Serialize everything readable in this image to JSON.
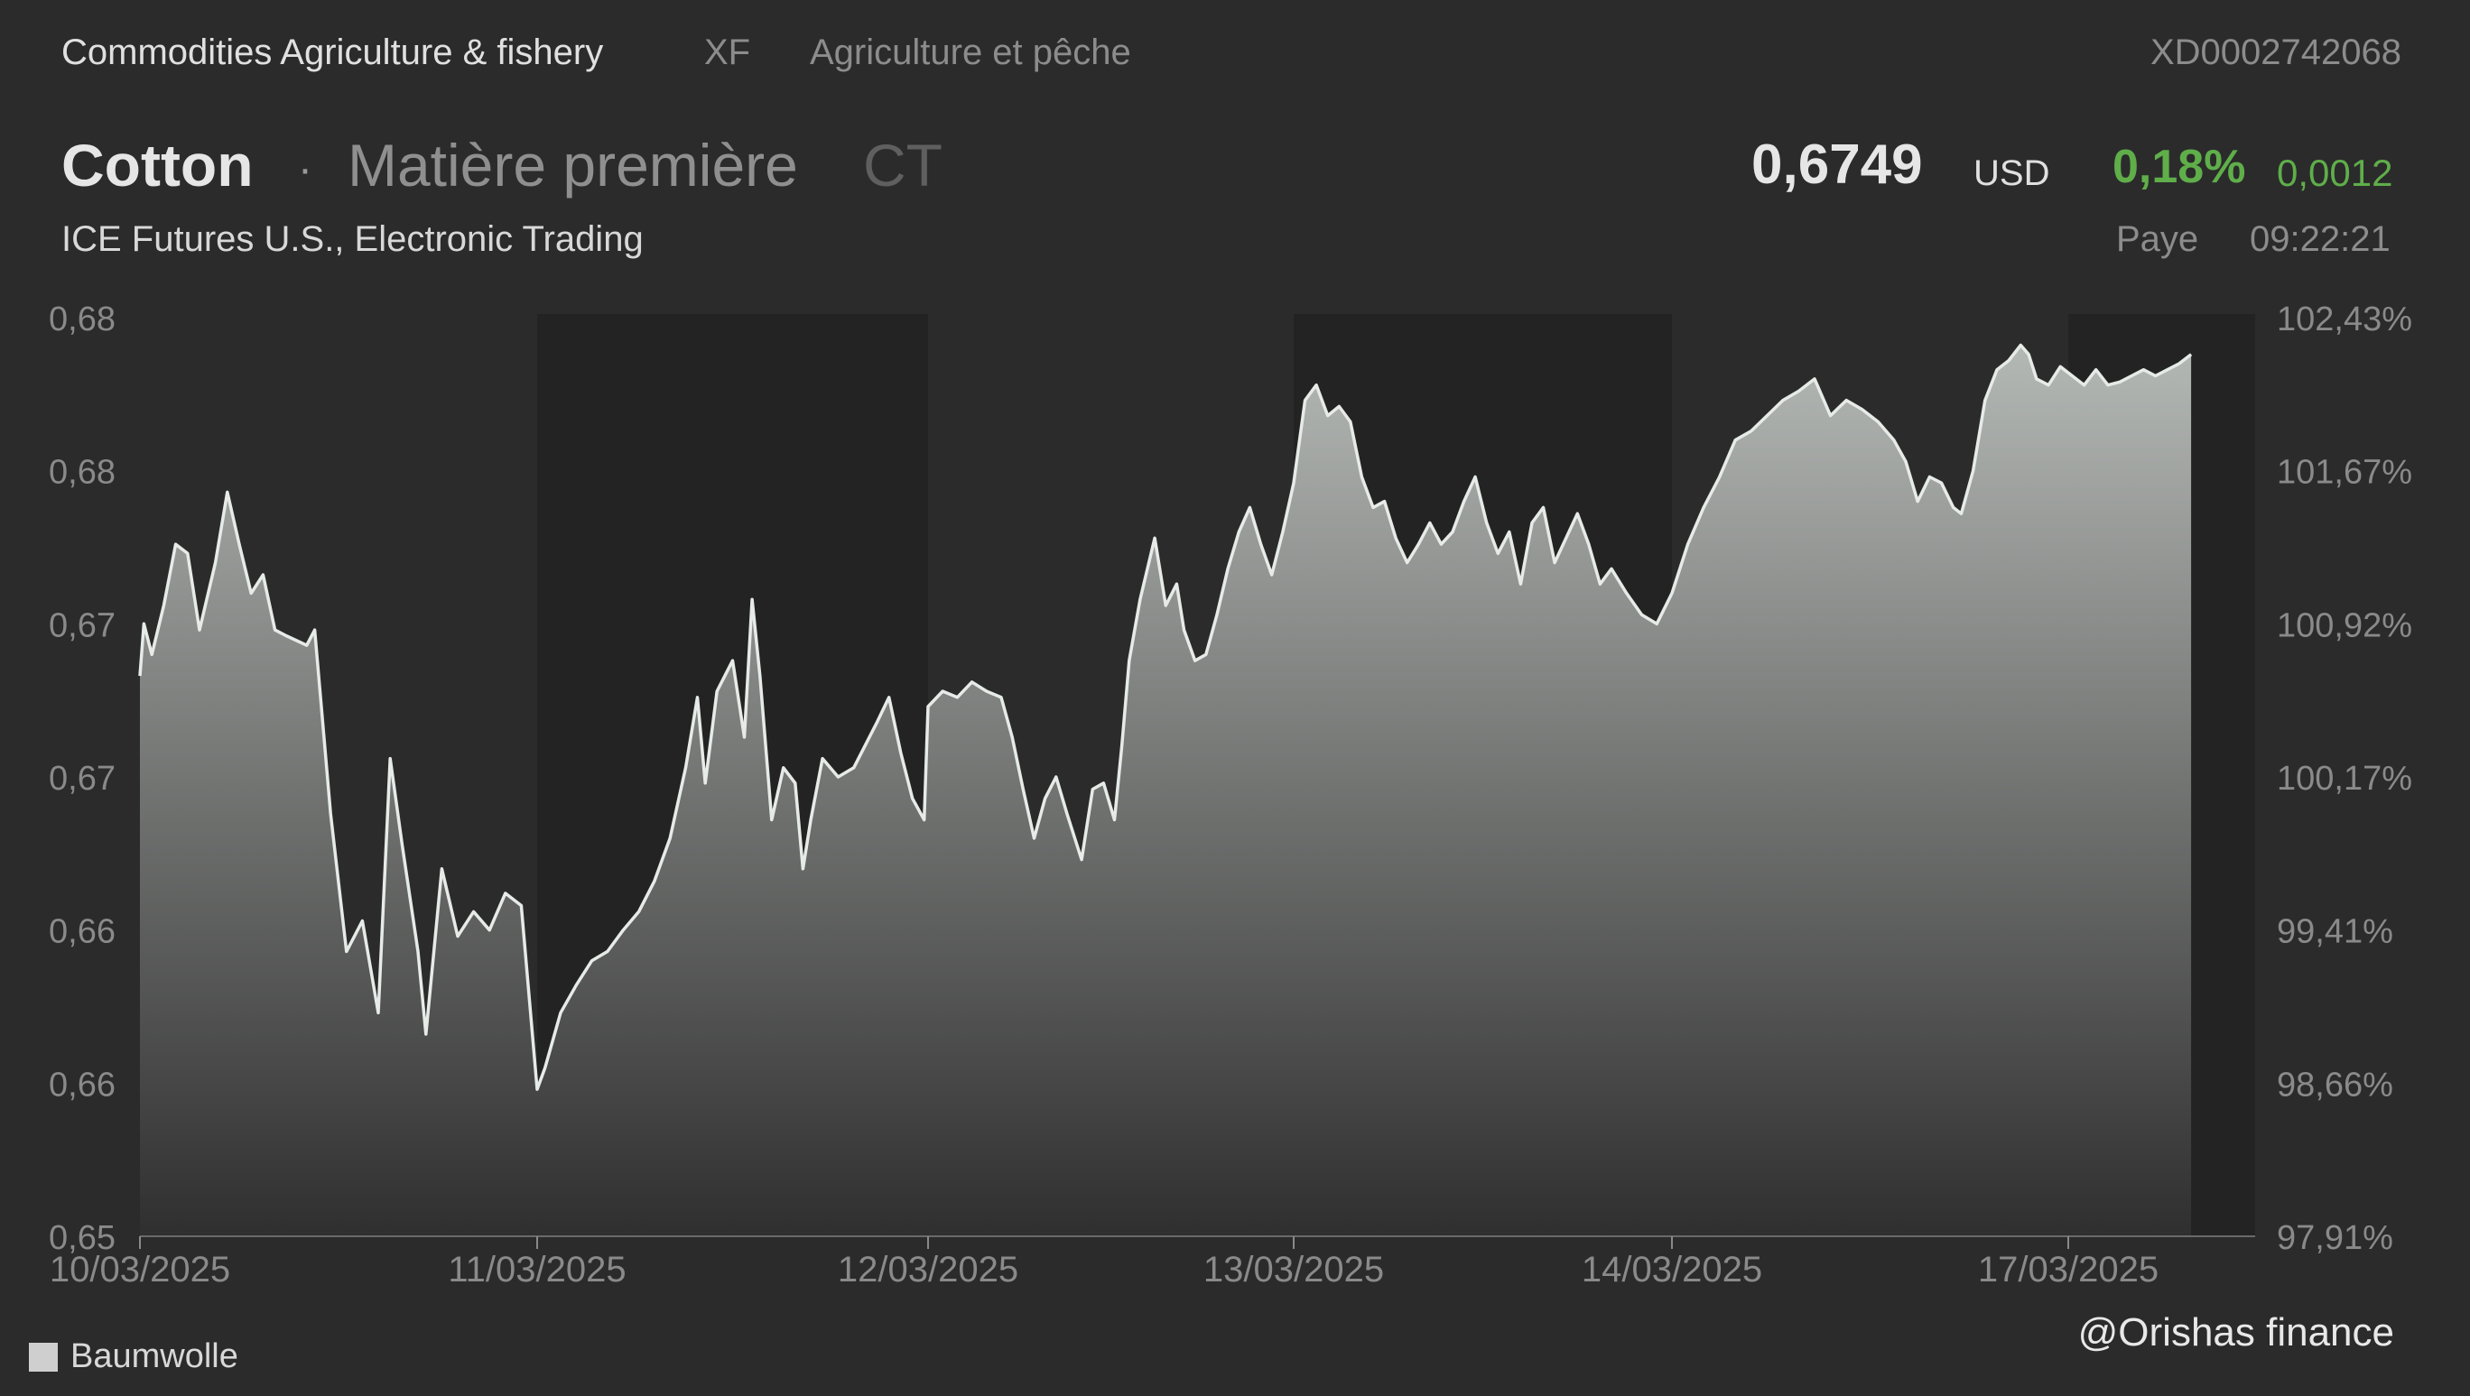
{
  "header": {
    "category": "Commodities Agriculture & fishery",
    "code": "XF",
    "category_fr": "Agriculture et pêche",
    "isin": "XD0002742068",
    "name": "Cotton",
    "separator": "·",
    "type": "Matière première",
    "ticker": "CT",
    "price": "0,6749",
    "currency": "USD",
    "change_pct": "0,18%",
    "change_abs": "0,0012",
    "exchange": "ICE Futures U.S., Electronic Trading",
    "country": "Paye",
    "time": "09:22:21"
  },
  "colors": {
    "background": "#2b2b2b",
    "band_dark": "#232323",
    "line": "#e6ebe8",
    "fill_top": "#b4b8b5",
    "fill_bottom": "#2f2f2f",
    "positive": "#5fae4a"
  },
  "chart_data": {
    "type": "area",
    "title": "",
    "xlabel": "",
    "ylabel": "",
    "ylim": [
      0.6512,
      0.6812
    ],
    "y_left_ticks": [
      "0,68",
      "0,68",
      "0,67",
      "0,67",
      "0,66",
      "0,66",
      "0,65"
    ],
    "y_right_ticks": [
      "102,43%",
      "101,67%",
      "100,92%",
      "100,17%",
      "99,41%",
      "98,66%",
      "97,91%"
    ],
    "x_ticks": [
      "10/03/2025",
      "11/03/2025",
      "12/03/2025",
      "13/03/2025",
      "14/03/2025",
      "17/03/2025"
    ],
    "series": [
      {
        "name": "Baumwolle",
        "points": [
          [
            0.0,
            0.6695
          ],
          [
            0.01,
            0.6712
          ],
          [
            0.03,
            0.6702
          ],
          [
            0.06,
            0.6718
          ],
          [
            0.09,
            0.6738
          ],
          [
            0.12,
            0.6735
          ],
          [
            0.15,
            0.671
          ],
          [
            0.19,
            0.6732
          ],
          [
            0.22,
            0.6755
          ],
          [
            0.25,
            0.6738
          ],
          [
            0.28,
            0.6722
          ],
          [
            0.31,
            0.6728
          ],
          [
            0.34,
            0.671
          ],
          [
            0.37,
            0.6708
          ],
          [
            0.42,
            0.6705
          ],
          [
            0.44,
            0.671
          ],
          [
            0.48,
            0.665
          ],
          [
            0.52,
            0.6605
          ],
          [
            0.56,
            0.6615
          ],
          [
            0.6,
            0.6585
          ],
          [
            0.63,
            0.6668
          ],
          [
            0.66,
            0.664
          ],
          [
            0.7,
            0.6605
          ],
          [
            0.72,
            0.6578
          ],
          [
            0.76,
            0.6632
          ],
          [
            0.8,
            0.661
          ],
          [
            0.84,
            0.6618
          ],
          [
            0.88,
            0.6612
          ],
          [
            0.92,
            0.6624
          ],
          [
            0.96,
            0.662
          ],
          [
            1.0,
            0.656
          ],
          [
            1.02,
            0.6567
          ],
          [
            1.06,
            0.6585
          ],
          [
            1.1,
            0.6594
          ],
          [
            1.14,
            0.6602
          ],
          [
            1.18,
            0.6605
          ],
          [
            1.22,
            0.6612
          ],
          [
            1.26,
            0.6618
          ],
          [
            1.3,
            0.6628
          ],
          [
            1.34,
            0.6642
          ],
          [
            1.38,
            0.6665
          ],
          [
            1.41,
            0.6688
          ],
          [
            1.43,
            0.666
          ],
          [
            1.46,
            0.669
          ],
          [
            1.5,
            0.67
          ],
          [
            1.53,
            0.6675
          ],
          [
            1.55,
            0.672
          ],
          [
            1.57,
            0.6695
          ],
          [
            1.6,
            0.6648
          ],
          [
            1.63,
            0.6665
          ],
          [
            1.66,
            0.666
          ],
          [
            1.68,
            0.6632
          ],
          [
            1.7,
            0.6648
          ],
          [
            1.73,
            0.6668
          ],
          [
            1.77,
            0.6662
          ],
          [
            1.81,
            0.6665
          ],
          [
            1.85,
            0.6675
          ],
          [
            1.87,
            0.668
          ],
          [
            1.9,
            0.6688
          ],
          [
            1.93,
            0.667
          ],
          [
            1.96,
            0.6655
          ],
          [
            1.99,
            0.6648
          ],
          [
            2.0,
            0.6685
          ],
          [
            2.04,
            0.669
          ],
          [
            2.08,
            0.6688
          ],
          [
            2.12,
            0.6693
          ],
          [
            2.16,
            0.669
          ],
          [
            2.2,
            0.6688
          ],
          [
            2.23,
            0.6675
          ],
          [
            2.26,
            0.6658
          ],
          [
            2.29,
            0.6642
          ],
          [
            2.32,
            0.6655
          ],
          [
            2.35,
            0.6662
          ],
          [
            2.38,
            0.665
          ],
          [
            2.42,
            0.6635
          ],
          [
            2.45,
            0.6658
          ],
          [
            2.48,
            0.666
          ],
          [
            2.51,
            0.6648
          ],
          [
            2.53,
            0.6672
          ],
          [
            2.55,
            0.67
          ],
          [
            2.58,
            0.672
          ],
          [
            2.62,
            0.674
          ],
          [
            2.65,
            0.6718
          ],
          [
            2.68,
            0.6725
          ],
          [
            2.7,
            0.671
          ],
          [
            2.73,
            0.67
          ],
          [
            2.76,
            0.6702
          ],
          [
            2.79,
            0.6715
          ],
          [
            2.82,
            0.673
          ],
          [
            2.85,
            0.6742
          ],
          [
            2.88,
            0.675
          ],
          [
            2.91,
            0.6738
          ],
          [
            2.94,
            0.6728
          ],
          [
            2.97,
            0.6742
          ],
          [
            3.0,
            0.6758
          ],
          [
            3.03,
            0.6785
          ],
          [
            3.06,
            0.679
          ],
          [
            3.09,
            0.678
          ],
          [
            3.12,
            0.6783
          ],
          [
            3.15,
            0.6778
          ],
          [
            3.18,
            0.676
          ],
          [
            3.21,
            0.675
          ],
          [
            3.24,
            0.6752
          ],
          [
            3.27,
            0.674
          ],
          [
            3.3,
            0.6732
          ],
          [
            3.33,
            0.6738
          ],
          [
            3.36,
            0.6745
          ],
          [
            3.39,
            0.6738
          ],
          [
            3.42,
            0.6742
          ],
          [
            3.45,
            0.6752
          ],
          [
            3.48,
            0.676
          ],
          [
            3.51,
            0.6745
          ],
          [
            3.54,
            0.6735
          ],
          [
            3.57,
            0.6742
          ],
          [
            3.6,
            0.6725
          ],
          [
            3.63,
            0.6745
          ],
          [
            3.66,
            0.675
          ],
          [
            3.69,
            0.6732
          ],
          [
            3.72,
            0.674
          ],
          [
            3.75,
            0.6748
          ],
          [
            3.78,
            0.6738
          ],
          [
            3.81,
            0.6725
          ],
          [
            3.84,
            0.673
          ],
          [
            3.88,
            0.6722
          ],
          [
            3.92,
            0.6715
          ],
          [
            3.96,
            0.6712
          ],
          [
            4.0,
            0.6722
          ],
          [
            4.04,
            0.6738
          ],
          [
            4.08,
            0.675
          ],
          [
            4.12,
            0.676
          ],
          [
            4.16,
            0.6772
          ],
          [
            4.2,
            0.6775
          ],
          [
            4.24,
            0.678
          ],
          [
            4.28,
            0.6785
          ],
          [
            4.32,
            0.6788
          ],
          [
            4.36,
            0.6792
          ],
          [
            4.4,
            0.678
          ],
          [
            4.44,
            0.6785
          ],
          [
            4.48,
            0.6782
          ],
          [
            4.52,
            0.6778
          ],
          [
            4.56,
            0.6772
          ],
          [
            4.59,
            0.6765
          ],
          [
            4.62,
            0.6752
          ],
          [
            4.65,
            0.676
          ],
          [
            4.68,
            0.6758
          ],
          [
            4.71,
            0.675
          ],
          [
            4.73,
            0.6748
          ],
          [
            4.76,
            0.6762
          ],
          [
            4.79,
            0.6785
          ],
          [
            4.82,
            0.6795
          ],
          [
            4.85,
            0.6798
          ],
          [
            4.88,
            0.6803
          ],
          [
            4.9,
            0.68
          ],
          [
            4.92,
            0.6792
          ],
          [
            4.95,
            0.679
          ],
          [
            4.98,
            0.6796
          ],
          [
            5.01,
            0.6793
          ],
          [
            5.04,
            0.679
          ],
          [
            5.07,
            0.6795
          ],
          [
            5.1,
            0.679
          ],
          [
            5.13,
            0.6791
          ],
          [
            5.16,
            0.6793
          ],
          [
            5.19,
            0.6795
          ],
          [
            5.22,
            0.6793
          ],
          [
            5.25,
            0.6795
          ],
          [
            5.28,
            0.6797
          ],
          [
            5.31,
            0.68
          ]
        ]
      }
    ],
    "legend": "bottom-left",
    "grid": false
  },
  "watermark": "@Orishas finance"
}
